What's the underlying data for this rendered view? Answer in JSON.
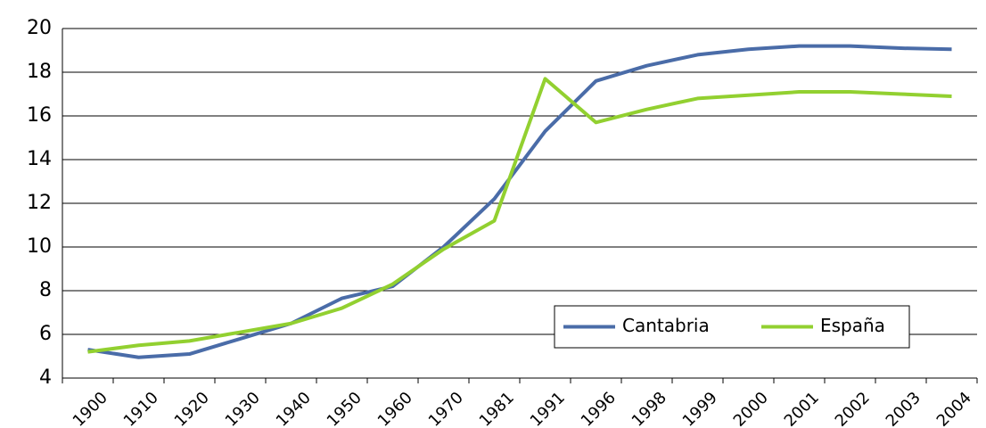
{
  "chart_data": {
    "type": "line",
    "categories": [
      "1900",
      "1910",
      "1920",
      "1930",
      "1940",
      "1950",
      "1960",
      "1970",
      "1981",
      "1991",
      "1996",
      "1998",
      "1999",
      "2000",
      "2001",
      "2002",
      "2003",
      "2004"
    ],
    "series": [
      {
        "name": "Cantabria",
        "color": "#4a6ca8",
        "values": [
          5.3,
          4.95,
          5.1,
          5.8,
          6.5,
          7.65,
          8.2,
          10.0,
          12.2,
          15.3,
          17.6,
          18.3,
          18.8,
          19.05,
          19.2,
          19.2,
          19.1,
          19.05
        ]
      },
      {
        "name": "España",
        "color": "#92d030",
        "values": [
          5.2,
          5.5,
          5.7,
          6.1,
          6.5,
          7.2,
          8.3,
          9.9,
          11.2,
          17.7,
          15.7,
          16.3,
          16.8,
          16.95,
          17.1,
          17.1,
          17.0,
          16.9
        ]
      }
    ],
    "ylim": [
      4,
      20
    ],
    "yticks": [
      4,
      6,
      8,
      10,
      12,
      14,
      16,
      18,
      20
    ],
    "grid": true,
    "legend": "lower right"
  }
}
